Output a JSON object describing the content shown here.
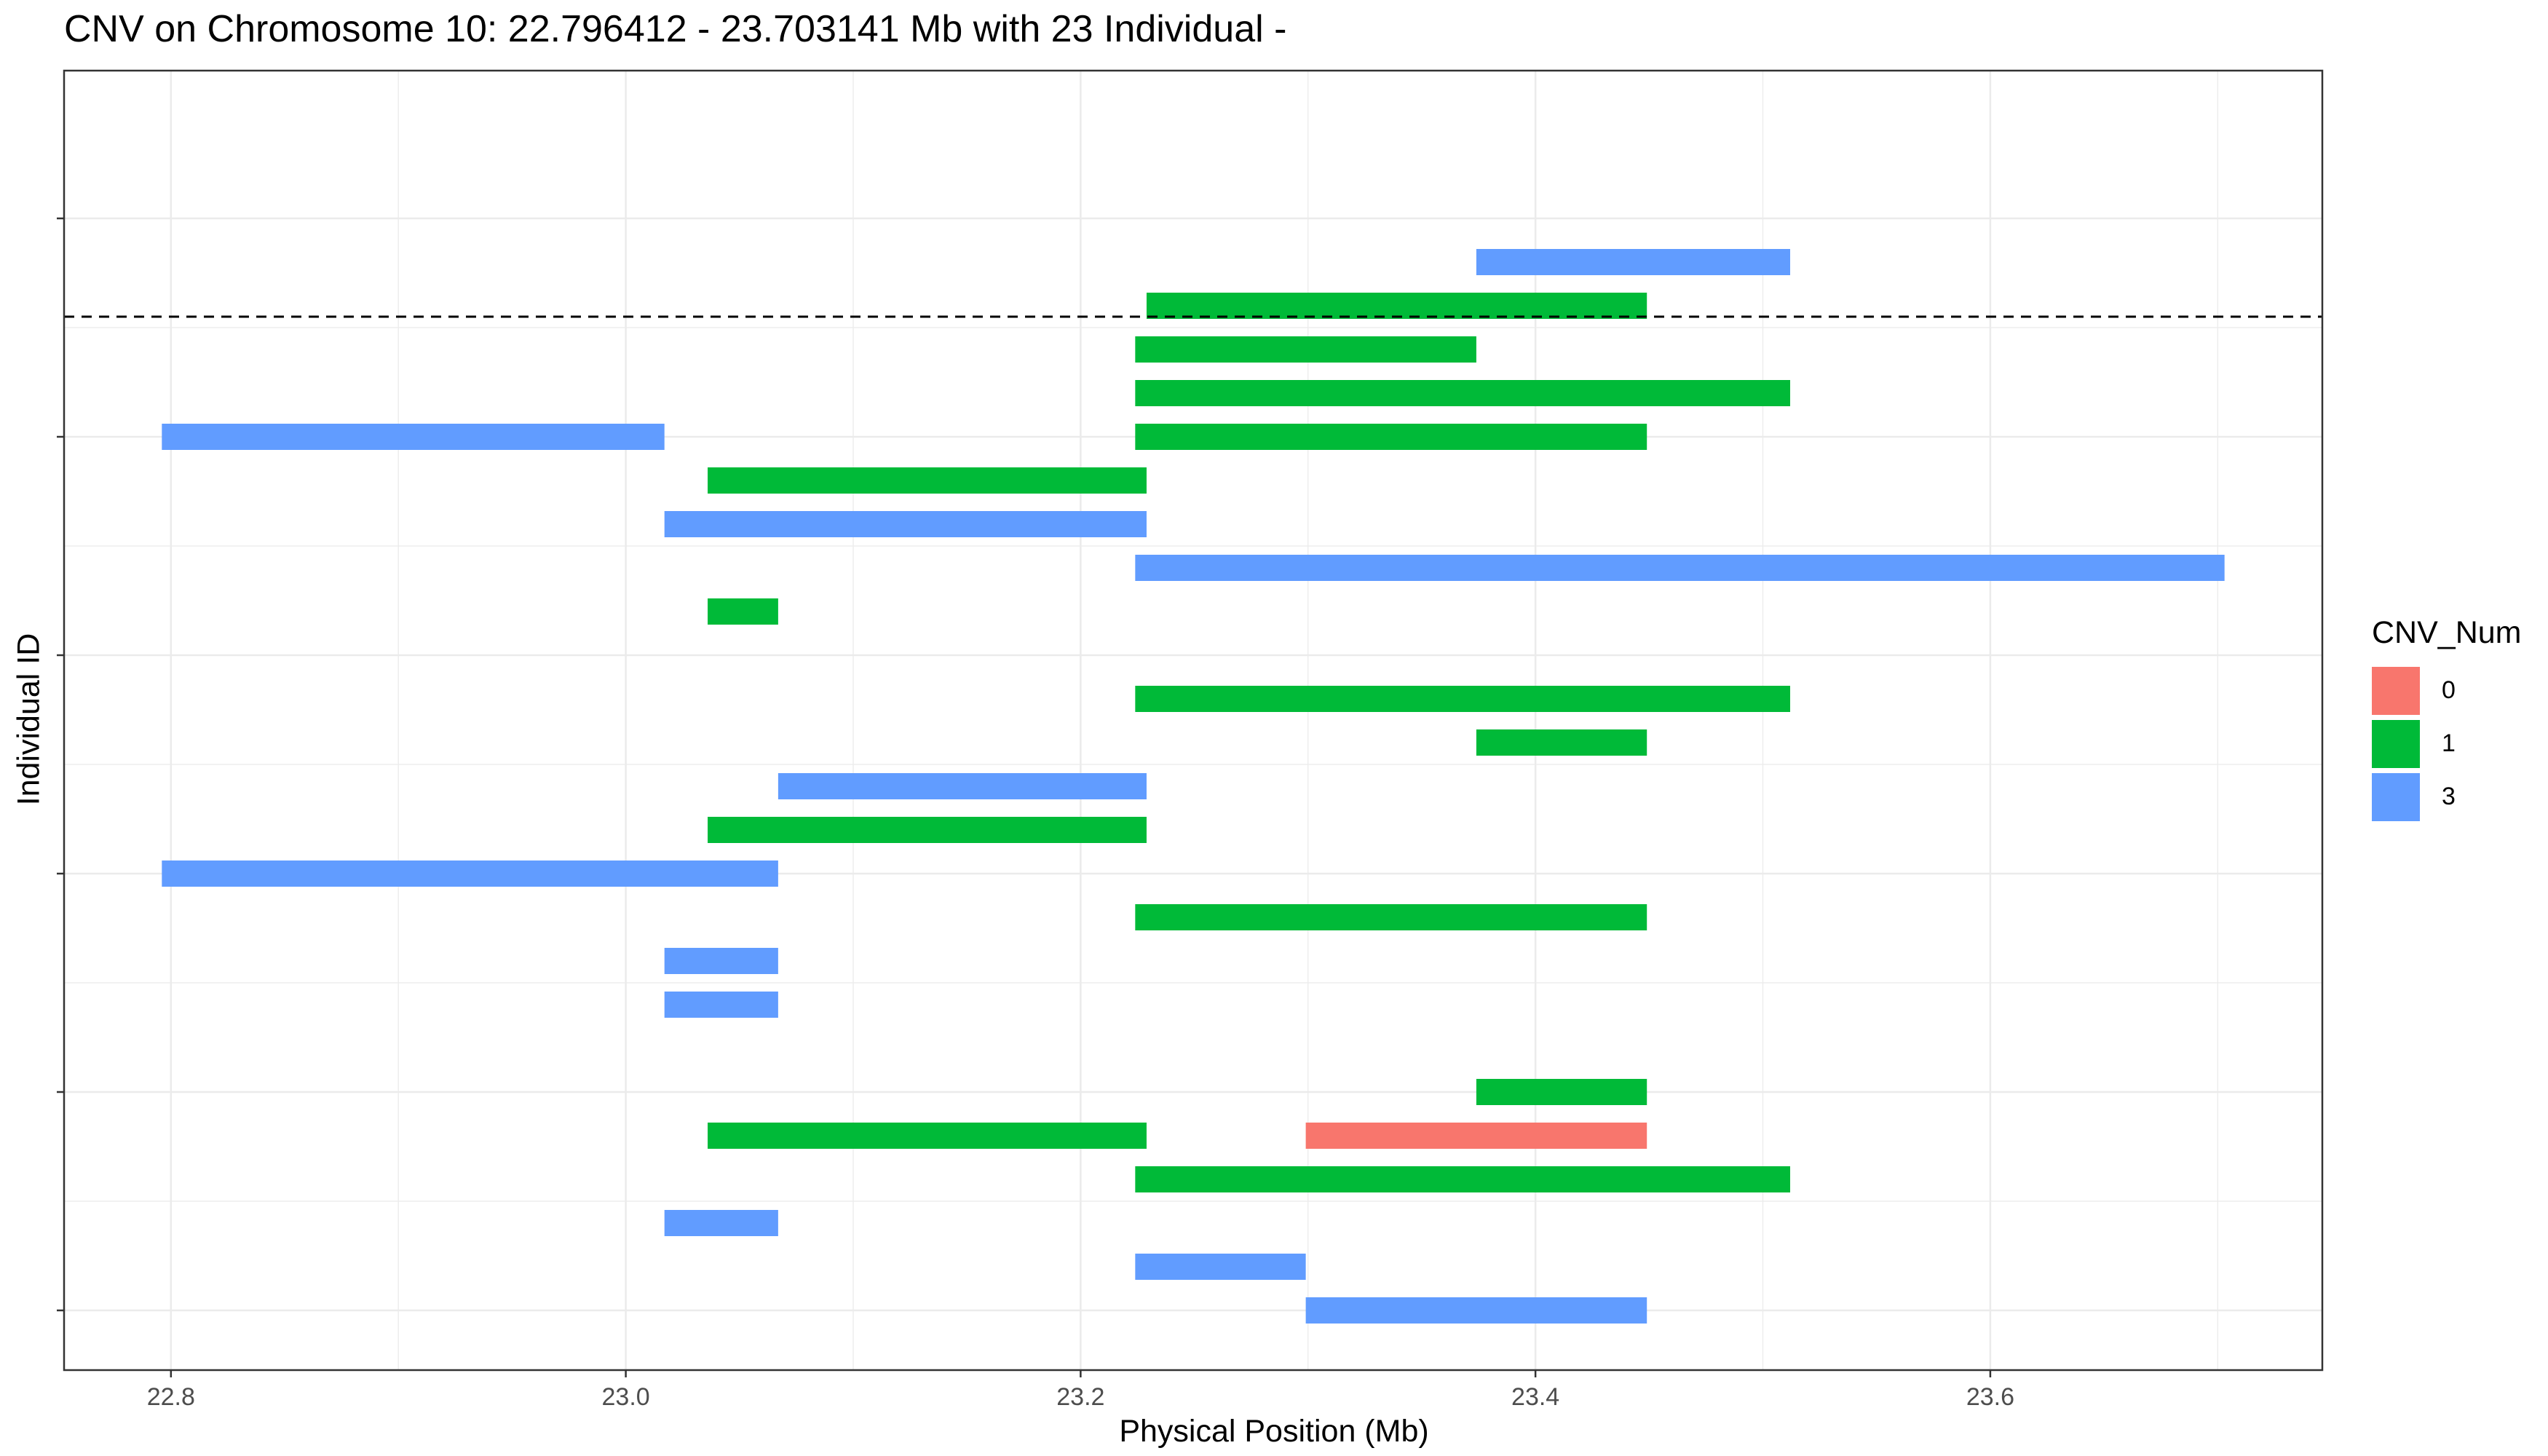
{
  "chart_data": {
    "type": "bar",
    "orientation": "horizontal-segments",
    "title": "CNV on Chromosome 10: 22.796412 - 23.703141 Mb with 23 Individual -",
    "xlabel": "Physical Position (Mb)",
    "ylabel": "Individual ID",
    "xlim": [
      22.753,
      23.746
    ],
    "x_ticks": [
      "22.8",
      "23.0",
      "23.2",
      "23.4",
      "23.6"
    ],
    "x_tick_values": [
      22.8,
      23.0,
      23.2,
      23.4,
      23.6
    ],
    "grid": true,
    "reference_line": {
      "style": "dashed",
      "row": 23.75
    },
    "legend": {
      "title": "CNV_Num",
      "position": "right",
      "items": [
        {
          "label": "0",
          "color": "#F8766D"
        },
        {
          "label": "1",
          "color": "#00BA38"
        },
        {
          "label": "3",
          "color": "#619CFF"
        }
      ]
    },
    "series": [
      {
        "row": 1,
        "start": 23.299,
        "end": 23.449,
        "cnv": "3"
      },
      {
        "row": 2,
        "start": 23.224,
        "end": 23.299,
        "cnv": "3"
      },
      {
        "row": 3,
        "start": 23.017,
        "end": 23.067,
        "cnv": "3"
      },
      {
        "row": 4,
        "start": 23.224,
        "end": 23.512,
        "cnv": "1"
      },
      {
        "row": 5,
        "start": 23.036,
        "end": 23.229,
        "cnv": "1"
      },
      {
        "row": 5,
        "start": 23.299,
        "end": 23.449,
        "cnv": "0"
      },
      {
        "row": 6,
        "start": 23.374,
        "end": 23.449,
        "cnv": "1"
      },
      {
        "row": 8,
        "start": 23.017,
        "end": 23.067,
        "cnv": "3"
      },
      {
        "row": 9,
        "start": 23.017,
        "end": 23.067,
        "cnv": "3"
      },
      {
        "row": 10,
        "start": 23.224,
        "end": 23.449,
        "cnv": "1"
      },
      {
        "row": 11,
        "start": 22.796,
        "end": 23.067,
        "cnv": "3"
      },
      {
        "row": 12,
        "start": 23.036,
        "end": 23.229,
        "cnv": "1"
      },
      {
        "row": 13,
        "start": 23.067,
        "end": 23.229,
        "cnv": "3"
      },
      {
        "row": 14,
        "start": 23.374,
        "end": 23.449,
        "cnv": "1"
      },
      {
        "row": 15,
        "start": 23.224,
        "end": 23.512,
        "cnv": "1"
      },
      {
        "row": 17,
        "start": 23.036,
        "end": 23.067,
        "cnv": "1"
      },
      {
        "row": 18,
        "start": 23.224,
        "end": 23.703,
        "cnv": "3"
      },
      {
        "row": 19,
        "start": 23.017,
        "end": 23.229,
        "cnv": "3"
      },
      {
        "row": 20,
        "start": 23.036,
        "end": 23.229,
        "cnv": "1"
      },
      {
        "row": 21,
        "start": 22.796,
        "end": 23.017,
        "cnv": "3"
      },
      {
        "row": 21,
        "start": 23.224,
        "end": 23.449,
        "cnv": "1"
      },
      {
        "row": 22,
        "start": 23.224,
        "end": 23.512,
        "cnv": "1"
      },
      {
        "row": 23,
        "start": 23.224,
        "end": 23.374,
        "cnv": "1"
      },
      {
        "row": 24,
        "start": 23.229,
        "end": 23.449,
        "cnv": "1"
      },
      {
        "row": 25,
        "start": 23.374,
        "end": 23.512,
        "cnv": "3"
      }
    ]
  }
}
